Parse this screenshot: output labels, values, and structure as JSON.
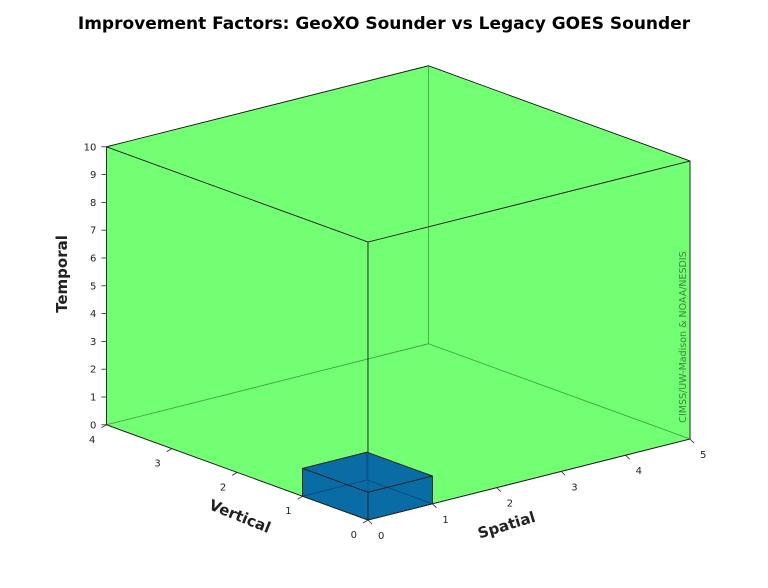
{
  "chart_data": {
    "type": "3d-box",
    "title": "Improvement Factors: GeoXO Sounder vs Legacy GOES Sounder",
    "xlabel": "Spatial",
    "ylabel": "Vertical",
    "zlabel": "Temporal",
    "xlim": [
      0,
      5
    ],
    "ylim": [
      0,
      4
    ],
    "zlim": [
      0,
      10
    ],
    "x_ticks": [
      "0",
      "1",
      "2",
      "3",
      "4",
      "5"
    ],
    "y_ticks": [
      "0",
      "1",
      "2",
      "3",
      "4"
    ],
    "z_ticks": [
      "0",
      "1",
      "2",
      "3",
      "4",
      "5",
      "6",
      "7",
      "8",
      "9",
      "10"
    ],
    "boxes": [
      {
        "name": "GeoXO Sounder",
        "spatial": 5,
        "vertical": 4,
        "temporal": 10,
        "color": "#5cff5c"
      },
      {
        "name": "Legacy GOES Sounder",
        "spatial": 1,
        "vertical": 1,
        "temporal": 1,
        "color": "#0060a8"
      }
    ],
    "grid": false
  },
  "credit": "CIMSS/UW-Madison & NOAA/NESDIS",
  "colors": {
    "credit": "#3a8a3a",
    "edge": "#1a1a1a"
  }
}
